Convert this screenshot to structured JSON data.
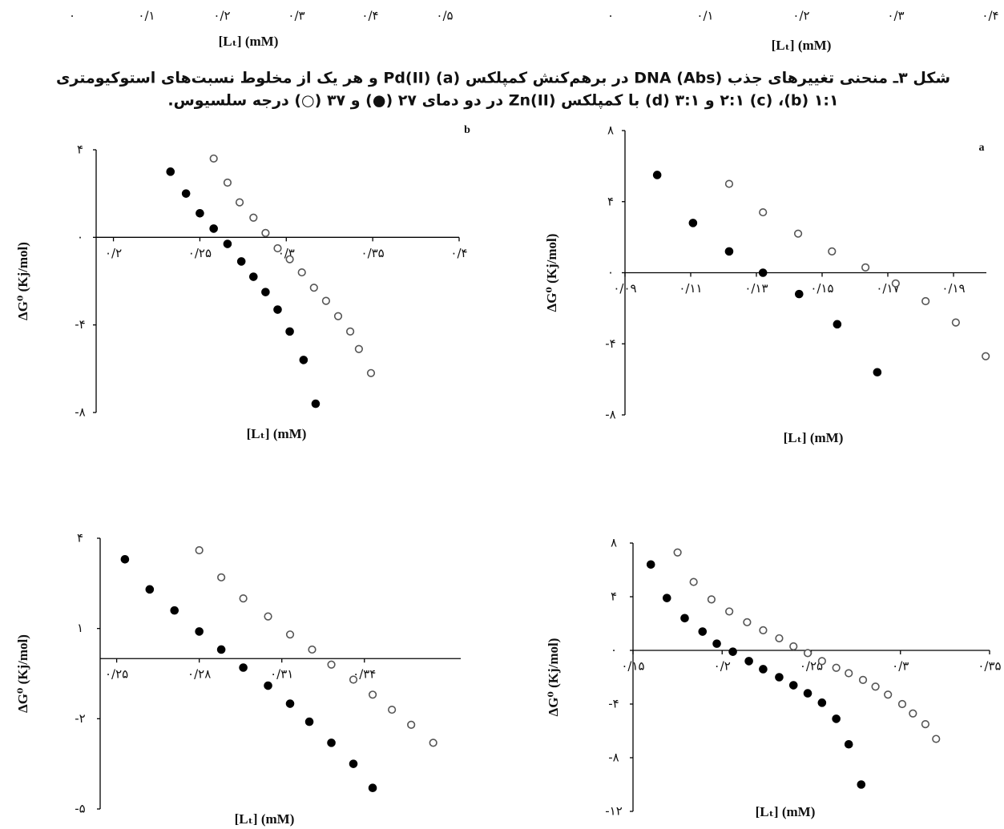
{
  "fragments": {
    "left": {
      "ticks": [
        "۰",
        "۰/۱",
        "۰/۲",
        "۰/۳",
        "۰/۴",
        "۰/۵"
      ],
      "xlabel": "[Lₜ] (mM)"
    },
    "right": {
      "ticks": [
        "۰",
        "۰/۱",
        "۰/۲",
        "۰/۳",
        "۰/۴"
      ],
      "xlabel": "[Lₜ] (mM)"
    }
  },
  "caption": [
    "شکل ۳ـ منحنی تغییرهای جذب DNA (Abs) در برهم‌کنش کمپلکس Pd(II) (a) و هر یک از مخلوط نسبت‌های استوکیومتری",
    "۱:۱ (b)، ۲:۱ (c) و ۳:۱ (d) با کمپلکس Zn(II) در دو دمای ۲۷ (●) و ۳۷ (○) درجه سلسیوس."
  ],
  "chart_data": [
    {
      "type": "scatter",
      "panel": "a",
      "xlabel": "[Lₜ] (mM)",
      "ylabel": "ΔG⁰ (Kj/mol)",
      "xlim": [
        0.09,
        0.2
      ],
      "ylim": [
        -8,
        8
      ],
      "xticks": [
        {
          "value": 0.09,
          "label": "۰/۰۹"
        },
        {
          "value": 0.11,
          "label": "۰/۱۱"
        },
        {
          "value": 0.13,
          "label": "۰/۱۳"
        },
        {
          "value": 0.15,
          "label": "۰/۱۵"
        },
        {
          "value": 0.17,
          "label": "۰/۱۷"
        },
        {
          "value": 0.19,
          "label": "۰/۱۹"
        }
      ],
      "yticks": [
        {
          "value": 8,
          "label": "۸"
        },
        {
          "value": 4,
          "label": "۴"
        },
        {
          "value": 0,
          "label": "۰"
        },
        {
          "value": -4,
          "label": "-۴"
        },
        {
          "value": -8,
          "label": "-۸"
        }
      ],
      "series": [
        {
          "marker": "filled",
          "color": "#000000",
          "x": [
            0.0998,
            0.1107,
            0.1217,
            0.132,
            0.143,
            0.1546,
            0.1668
          ],
          "values": [
            5.5,
            2.8,
            1.2,
            0,
            -1.2,
            -2.9,
            -5.6
          ]
        },
        {
          "marker": "open",
          "color": "#555555",
          "x": [
            0.1217,
            0.132,
            0.1427,
            0.153,
            0.1632,
            0.1724,
            0.1815,
            0.1907,
            0.1998
          ],
          "values": [
            5.0,
            3.4,
            2.2,
            1.2,
            0.3,
            -0.6,
            -1.6,
            -2.8,
            -4.7
          ]
        }
      ]
    },
    {
      "type": "scatter",
      "panel": "b",
      "xlabel": "[Lₜ] (mM)",
      "ylabel": "ΔG⁰ (Kj/mol)",
      "xlim": [
        0.19,
        0.4
      ],
      "ylim": [
        -8,
        4
      ],
      "xticks": [
        {
          "value": 0.2,
          "label": "۰/۲"
        },
        {
          "value": 0.25,
          "label": "۰/۲۵"
        },
        {
          "value": 0.3,
          "label": "۰/۳"
        },
        {
          "value": 0.35,
          "label": "۰/۳۵"
        },
        {
          "value": 0.4,
          "label": "۰/۴"
        }
      ],
      "yticks": [
        {
          "value": 4,
          "label": "۴"
        },
        {
          "value": 0,
          "label": "۰"
        },
        {
          "value": -4,
          "label": "-۴"
        },
        {
          "value": -8,
          "label": "-۸"
        }
      ],
      "series": [
        {
          "marker": "filled",
          "color": "#000000",
          "x": [
            0.233,
            0.242,
            0.25,
            0.258,
            0.266,
            0.274,
            0.281,
            0.288,
            0.295,
            0.302,
            0.31,
            0.317
          ],
          "values": [
            3.0,
            2.0,
            1.1,
            0.4,
            -0.3,
            -1.1,
            -1.8,
            -2.5,
            -3.3,
            -4.3,
            -5.6,
            -7.6
          ]
        },
        {
          "marker": "open",
          "color": "#555555",
          "x": [
            0.258,
            0.266,
            0.273,
            0.281,
            0.288,
            0.295,
            0.302,
            0.309,
            0.316,
            0.323,
            0.33,
            0.337,
            0.342,
            0.349
          ],
          "values": [
            3.6,
            2.5,
            1.6,
            0.9,
            0.2,
            -0.5,
            -1.0,
            -1.6,
            -2.3,
            -2.9,
            -3.6,
            -4.3,
            -5.1,
            -6.2
          ]
        }
      ]
    },
    {
      "type": "scatter",
      "xlabel": "[Lₜ] (mM)",
      "ylabel": "ΔG⁰ (Kj/mol)",
      "xlim": [
        0.244,
        0.375
      ],
      "ylim": [
        -5,
        4
      ],
      "xticks": [
        {
          "value": 0.25,
          "label": "۰/۲۵"
        },
        {
          "value": 0.28,
          "label": "۰/۲۸"
        },
        {
          "value": 0.31,
          "label": "۰/۳۱"
        },
        {
          "value": 0.34,
          "label": "۰/۳۴"
        }
      ],
      "yticks": [
        {
          "value": 4,
          "label": "۴"
        },
        {
          "value": 1,
          "label": "۱"
        },
        {
          "value": -2,
          "label": "-۲"
        },
        {
          "value": -5,
          "label": "-۵"
        }
      ],
      "series": [
        {
          "marker": "filled",
          "color": "#000000",
          "x": [
            0.253,
            0.262,
            0.271,
            0.28,
            0.288,
            0.296,
            0.305,
            0.313,
            0.32,
            0.328,
            0.336,
            0.343
          ],
          "values": [
            3.3,
            2.3,
            1.6,
            0.9,
            0.3,
            -0.3,
            -0.9,
            -1.5,
            -2.1,
            -2.8,
            -3.5,
            -4.3
          ]
        },
        {
          "marker": "open",
          "color": "#555555",
          "x": [
            0.28,
            0.288,
            0.296,
            0.305,
            0.313,
            0.321,
            0.328,
            0.336,
            0.343,
            0.35,
            0.357,
            0.365
          ],
          "values": [
            3.6,
            2.7,
            2.0,
            1.4,
            0.8,
            0.3,
            -0.2,
            -0.7,
            -1.2,
            -1.7,
            -2.2,
            -2.8
          ]
        }
      ]
    },
    {
      "type": "scatter",
      "xlabel": "[Lₜ] (mM)",
      "ylabel": "ΔG⁰ (Kj/mol)",
      "xlim": [
        0.15,
        0.35
      ],
      "ylim": [
        -12,
        8
      ],
      "xticks": [
        {
          "value": 0.15,
          "label": "۰/۱۵"
        },
        {
          "value": 0.2,
          "label": "۰/۲"
        },
        {
          "value": 0.25,
          "label": "۰/۲۵"
        },
        {
          "value": 0.3,
          "label": "۰/۳"
        },
        {
          "value": 0.35,
          "label": "۰/۳۵"
        }
      ],
      "yticks": [
        {
          "value": 8,
          "label": "۸"
        },
        {
          "value": 4,
          "label": "۴"
        },
        {
          "value": 0,
          "label": "۰"
        },
        {
          "value": -4,
          "label": "-۴"
        },
        {
          "value": -8,
          "label": "-۸"
        },
        {
          "value": -12,
          "label": "-۱۲"
        }
      ],
      "series": [
        {
          "marker": "filled",
          "color": "#000000",
          "x": [
            0.16,
            0.169,
            0.179,
            0.189,
            0.197,
            0.206,
            0.215,
            0.223,
            0.232,
            0.24,
            0.248,
            0.256,
            0.264,
            0.271,
            0.278
          ],
          "values": [
            6.4,
            3.9,
            2.4,
            1.4,
            0.5,
            -0.1,
            -0.8,
            -1.4,
            -2.0,
            -2.6,
            -3.2,
            -3.9,
            -5.1,
            -7.0,
            -10.0
          ]
        },
        {
          "marker": "open",
          "color": "#555555",
          "x": [
            0.175,
            0.184,
            0.194,
            0.204,
            0.214,
            0.223,
            0.232,
            0.24,
            0.248,
            0.256,
            0.264,
            0.271,
            0.279,
            0.286,
            0.293,
            0.301,
            0.307,
            0.314,
            0.32
          ],
          "values": [
            7.3,
            5.1,
            3.8,
            2.9,
            2.1,
            1.5,
            0.9,
            0.3,
            -0.2,
            -0.8,
            -1.3,
            -1.7,
            -2.2,
            -2.7,
            -3.3,
            -4.0,
            -4.7,
            -5.5,
            -6.6
          ]
        }
      ]
    }
  ]
}
